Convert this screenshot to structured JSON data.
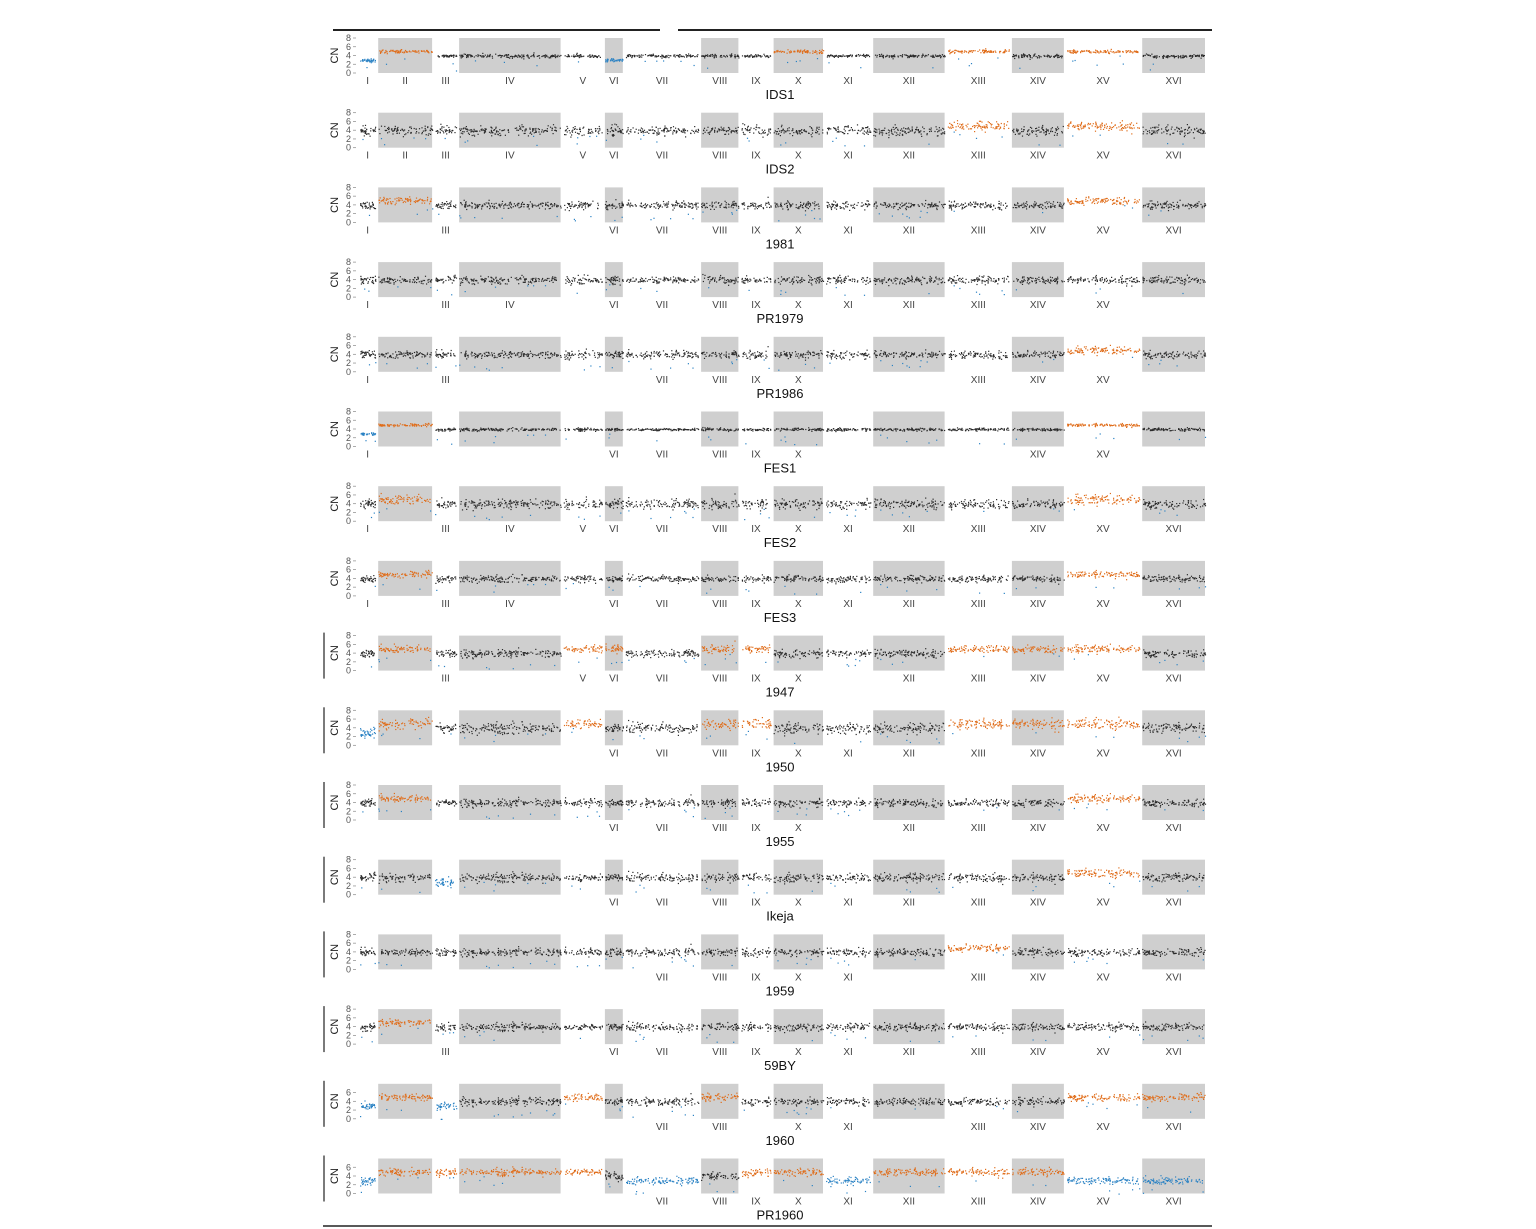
{
  "chart_data": {
    "type": "scatter",
    "ylabel": "CN",
    "yticks": [
      0,
      2,
      4,
      6,
      8
    ],
    "ylim": [
      0,
      8
    ],
    "chromosomes": [
      "I",
      "II",
      "III",
      "IV",
      "V",
      "VI",
      "VII",
      "VIII",
      "IX",
      "X",
      "XI",
      "XII",
      "XIII",
      "XIV",
      "XV",
      "XVI"
    ],
    "chromosome_sizes_kb": [
      230,
      813,
      317,
      1532,
      577,
      270,
      1091,
      563,
      440,
      746,
      667,
      1078,
      924,
      784,
      1091,
      948
    ],
    "shaded_chromosomes": [
      "II",
      "IV",
      "VI",
      "VIII",
      "X",
      "XII",
      "XIV",
      "XVI"
    ],
    "colors": {
      "euploid": "#2b2b2b",
      "gain": "#e06d1a",
      "loss": "#2a82c4",
      "shade": "#cfcfcf"
    },
    "panels": [
      {
        "name": "IDS1",
        "baseline": 4,
        "noise": 0.35,
        "segments": [
          [
            "I",
            3,
            "loss"
          ],
          [
            "II",
            5,
            "gain"
          ],
          [
            "VI",
            3,
            "loss"
          ],
          [
            "X",
            5,
            "gain"
          ],
          [
            "XIII",
            5,
            "gain"
          ],
          [
            "XV",
            5,
            "gain"
          ]
        ],
        "axis_labels": [
          "I",
          "II",
          "III",
          "IV",
          "V",
          "VI",
          "VII",
          "VIII",
          "IX",
          "X",
          "XI",
          "XII",
          "XIII",
          "XIV",
          "XV",
          "XVI"
        ]
      },
      {
        "name": "IDS2",
        "baseline": 4,
        "noise": 1.0,
        "segments": [
          [
            "XIII",
            5,
            "gain"
          ],
          [
            "XV",
            5,
            "gain"
          ]
        ],
        "axis_labels": [
          "I",
          "II",
          "III",
          "IV",
          "V",
          "VI",
          "VII",
          "VIII",
          "IX",
          "X",
          "XI",
          "XII",
          "XIII",
          "XIV",
          "XV",
          "XVI"
        ]
      },
      {
        "name": "1981",
        "baseline": 4,
        "noise": 0.8,
        "segments": [
          [
            "II",
            5,
            "gain"
          ],
          [
            "XV",
            5,
            "gain"
          ]
        ],
        "axis_labels": [
          "I",
          "III",
          "VI",
          "VII",
          "VIII",
          "IX",
          "X",
          "XI",
          "XII",
          "XIII",
          "XIV",
          "XV",
          "XVI"
        ]
      },
      {
        "name": "PR1979",
        "baseline": 4,
        "noise": 0.8,
        "segments": [],
        "axis_labels": [
          "I",
          "III",
          "IV",
          "VI",
          "VII",
          "VIII",
          "IX",
          "X",
          "XI",
          "XII",
          "XIII",
          "XIV",
          "XV"
        ]
      },
      {
        "name": "PR1986",
        "baseline": 4,
        "noise": 0.8,
        "segments": [
          [
            "XV",
            5,
            "gain"
          ]
        ],
        "axis_labels": [
          "I",
          "III",
          "VII",
          "VIII",
          "IX",
          "X",
          "XIII",
          "XIV",
          "XV"
        ]
      },
      {
        "name": "FES1",
        "baseline": 4,
        "noise": 0.3,
        "segments": [
          [
            "I",
            3,
            "loss"
          ],
          [
            "II",
            5,
            "gain"
          ],
          [
            "XV",
            5,
            "gain"
          ]
        ],
        "axis_labels": [
          "I",
          "VI",
          "VII",
          "VIII",
          "IX",
          "X",
          "XIV",
          "XV"
        ]
      },
      {
        "name": "FES2",
        "baseline": 4,
        "noise": 1.0,
        "segments": [
          [
            "II",
            5,
            "gain"
          ],
          [
            "XV",
            5,
            "gain"
          ]
        ],
        "axis_labels": [
          "I",
          "III",
          "IV",
          "V",
          "VI",
          "VII",
          "VIII",
          "IX",
          "X",
          "XI",
          "XII",
          "XIII",
          "XIV",
          "XV",
          "XVI"
        ]
      },
      {
        "name": "FES3",
        "baseline": 4,
        "noise": 0.7,
        "segments": [
          [
            "II",
            5,
            "gain"
          ],
          [
            "XV",
            5,
            "gain"
          ]
        ],
        "axis_labels": [
          "I",
          "III",
          "IV",
          "VI",
          "VII",
          "VIII",
          "IX",
          "X",
          "XI",
          "XII",
          "XIII",
          "XIV",
          "XV",
          "XVI"
        ]
      },
      {
        "name": "1947",
        "baseline": 4,
        "noise": 0.8,
        "segments": [
          [
            "II",
            5,
            "gain"
          ],
          [
            "V",
            5,
            "gain"
          ],
          [
            "VI",
            5,
            "gain"
          ],
          [
            "VIII",
            5,
            "gain"
          ],
          [
            "IX",
            5,
            "gain"
          ],
          [
            "XIII",
            5,
            "gain"
          ],
          [
            "XIV",
            5,
            "gain"
          ],
          [
            "XV",
            5,
            "gain"
          ]
        ],
        "axis_labels": [
          "III",
          "V",
          "VI",
          "VII",
          "VIII",
          "IX",
          "X",
          "XII",
          "XIII",
          "XIV",
          "XV",
          "XVI"
        ]
      },
      {
        "name": "1950",
        "baseline": 4,
        "noise": 1.1,
        "segments": [
          [
            "I",
            3,
            "loss"
          ],
          [
            "II",
            5,
            "gain"
          ],
          [
            "V",
            5,
            "gain"
          ],
          [
            "VIII",
            5,
            "gain"
          ],
          [
            "IX",
            5,
            "gain"
          ],
          [
            "XIII",
            5,
            "gain"
          ],
          [
            "XIV",
            5,
            "gain"
          ],
          [
            "XV",
            5,
            "gain"
          ]
        ],
        "axis_labels": [
          "VI",
          "VII",
          "VIII",
          "IX",
          "X",
          "XI",
          "XII",
          "XIII",
          "XIV",
          "XV",
          "XVI"
        ]
      },
      {
        "name": "1955",
        "baseline": 4,
        "noise": 0.8,
        "segments": [
          [
            "II",
            5,
            "gain"
          ],
          [
            "XV",
            5,
            "gain"
          ]
        ],
        "axis_labels": [
          "VI",
          "VII",
          "VIII",
          "IX",
          "X",
          "XII",
          "XIII",
          "XIV",
          "XV",
          "XVI"
        ]
      },
      {
        "name": "Ikeja",
        "baseline": 4,
        "noise": 0.9,
        "segments": [
          [
            "III",
            3,
            "loss"
          ],
          [
            "XV",
            5,
            "gain"
          ]
        ],
        "axis_labels": [
          "VI",
          "VII",
          "VIII",
          "IX",
          "X",
          "XI",
          "XII",
          "XIII",
          "XIV",
          "XV",
          "XVI"
        ]
      },
      {
        "name": "1959",
        "baseline": 4,
        "noise": 0.8,
        "segments": [
          [
            "XIII",
            5,
            "gain"
          ]
        ],
        "axis_labels": [
          "VII",
          "VIII",
          "IX",
          "X",
          "XI",
          "XIII",
          "XIV",
          "XV",
          "XVI"
        ]
      },
      {
        "name": "59BY",
        "baseline": 4,
        "noise": 0.8,
        "segments": [
          [
            "II",
            5,
            "gain"
          ]
        ],
        "axis_labels": [
          "III",
          "VI",
          "VII",
          "VIII",
          "IX",
          "X",
          "XI",
          "XII",
          "XIII",
          "XIV",
          "XV",
          "XVI"
        ]
      },
      {
        "name": "1960",
        "baseline": 4,
        "noise": 0.8,
        "yticks": [
          0,
          2,
          4,
          6
        ],
        "segments": [
          [
            "I",
            3,
            "loss"
          ],
          [
            "II",
            5,
            "gain"
          ],
          [
            "III",
            3,
            "loss"
          ],
          [
            "V",
            5,
            "gain"
          ],
          [
            "VIII",
            5,
            "gain"
          ],
          [
            "XV",
            5,
            "gain"
          ],
          [
            "XVI",
            5,
            "gain"
          ]
        ],
        "axis_labels": [
          "VII",
          "VIII",
          "X",
          "XI",
          "XIII",
          "XIV",
          "XV",
          "XVI"
        ]
      },
      {
        "name": "PR1960",
        "baseline": 4,
        "noise": 0.8,
        "yticks": [
          0,
          2,
          4,
          6
        ],
        "segments": [
          [
            "I",
            3,
            "loss"
          ],
          [
            "II",
            5,
            "gain"
          ],
          [
            "III",
            5,
            "gain"
          ],
          [
            "IV",
            5,
            "gain"
          ],
          [
            "V",
            5,
            "gain"
          ],
          [
            "VII",
            3,
            "loss"
          ],
          [
            "IX",
            5,
            "gain"
          ],
          [
            "X",
            5,
            "gain"
          ],
          [
            "XI",
            3,
            "loss"
          ],
          [
            "XII",
            5,
            "gain"
          ],
          [
            "XIII",
            5,
            "gain"
          ],
          [
            "XIV",
            5,
            "gain"
          ],
          [
            "XV",
            3,
            "loss"
          ],
          [
            "XVI",
            3,
            "loss"
          ]
        ],
        "axis_labels": [
          "VII",
          "VIII",
          "IX",
          "X",
          "XI",
          "XII",
          "XIII",
          "XIV",
          "XV",
          "XVI"
        ]
      }
    ]
  }
}
